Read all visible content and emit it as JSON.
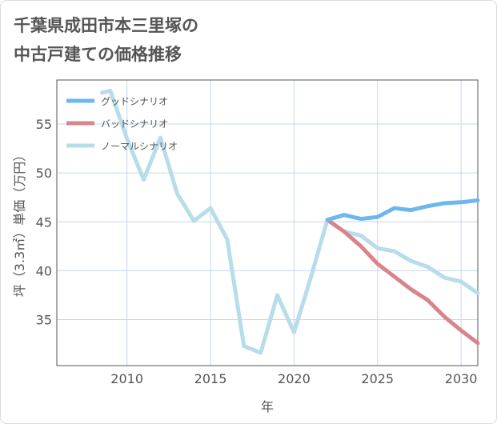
{
  "title": {
    "line1": "千葉県成田市本三里塚の",
    "line2": "中古戸建ての価格推移"
  },
  "chart_data": {
    "type": "line",
    "xlabel": "年",
    "ylabel": "坪（3.3㎡）単価（万円）",
    "xlim": [
      2005.8,
      2031
    ],
    "ylim": [
      30.3,
      59.5
    ],
    "x_ticks": [
      2010,
      2015,
      2020,
      2025,
      2030
    ],
    "y_ticks": [
      35,
      40,
      45,
      50,
      55
    ],
    "grid": true,
    "legend_position": "top-left",
    "series": [
      {
        "name": "グッドシナリオ",
        "color": "#6bb7f0",
        "x": [
          2022,
          2023,
          2024,
          2025,
          2026,
          2027,
          2028,
          2029,
          2030,
          2031
        ],
        "y": [
          45.2,
          45.7,
          45.3,
          45.5,
          46.4,
          46.2,
          46.6,
          46.9,
          47.0,
          47.2
        ]
      },
      {
        "name": "バッドシナリオ",
        "color": "#d9848a",
        "x": [
          2022,
          2023,
          2024,
          2025,
          2026,
          2027,
          2028,
          2029,
          2030,
          2031
        ],
        "y": [
          45.2,
          44.0,
          42.5,
          40.7,
          39.4,
          38.1,
          37.0,
          35.3,
          33.9,
          32.6
        ]
      },
      {
        "name": "ノーマルシナリオ",
        "color": "#b7dcea",
        "x": [
          2008.5,
          2009,
          2010,
          2011,
          2012,
          2013,
          2014,
          2015,
          2016,
          2017,
          2018,
          2019,
          2020,
          2021,
          2022,
          2023,
          2024,
          2025,
          2026,
          2027,
          2028,
          2029,
          2030,
          2031
        ],
        "y": [
          58.2,
          58.4,
          53.5,
          49.3,
          53.6,
          47.9,
          45.1,
          46.4,
          43.2,
          32.3,
          31.6,
          37.5,
          33.7,
          39.3,
          45.2,
          44.0,
          43.6,
          42.3,
          42.0,
          41.0,
          40.4,
          39.3,
          38.9,
          37.7
        ]
      }
    ]
  }
}
